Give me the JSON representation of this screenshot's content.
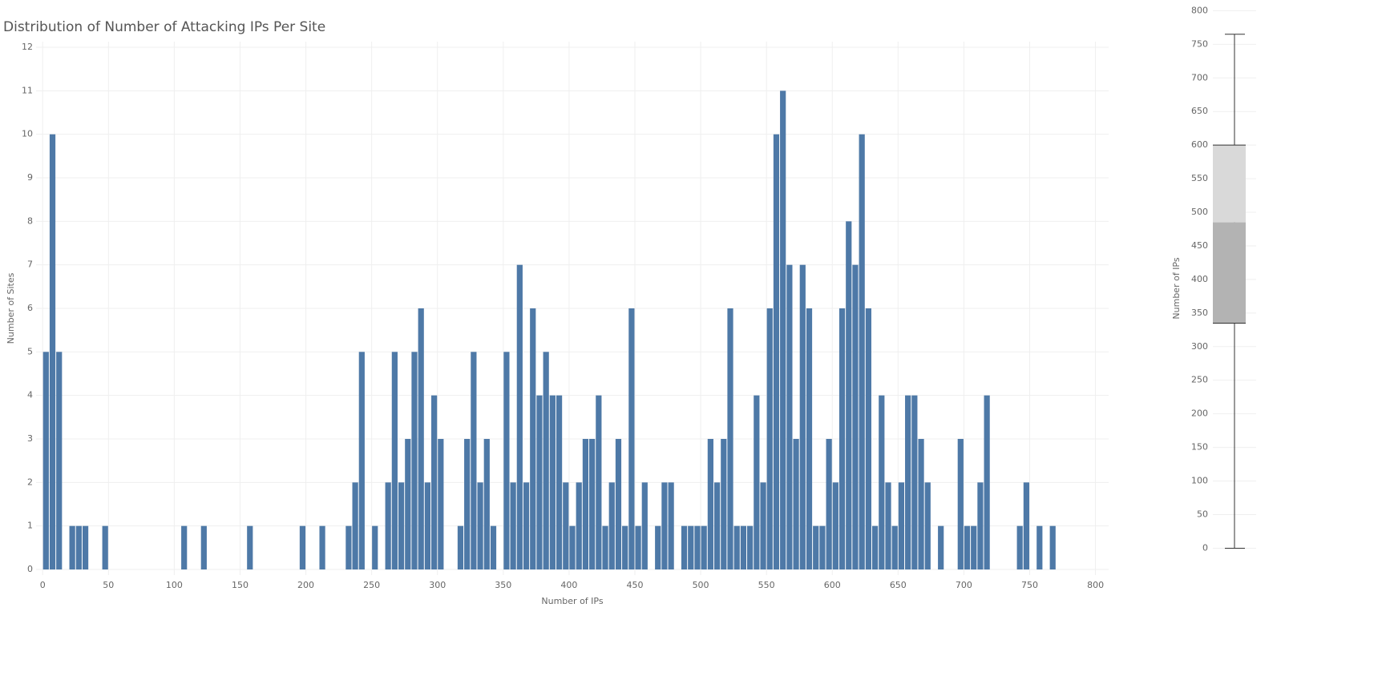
{
  "chart_data": [
    {
      "type": "histogram",
      "title": "Distribution of Number of Attacking IPs Per Site",
      "xlabel": "Number of IPs",
      "ylabel": "Number of Sites",
      "color": "#4e79a7",
      "grid": true,
      "bins": [
        0,
        5,
        10,
        15,
        20,
        25,
        30,
        35,
        40,
        45,
        50,
        55,
        60,
        65,
        70,
        75,
        80,
        85,
        90,
        95,
        100,
        105,
        110,
        115,
        120,
        125,
        130,
        135,
        140,
        145,
        150,
        155,
        160,
        165,
        170,
        175,
        180,
        185,
        190,
        195,
        200,
        205,
        210,
        215,
        220,
        225,
        230,
        235,
        240,
        245,
        250,
        255,
        260,
        265,
        270,
        275,
        280,
        285,
        290,
        295,
        300,
        305,
        310,
        315,
        320,
        325,
        330,
        335,
        340,
        345,
        350,
        355,
        360,
        365,
        370,
        375,
        380,
        385,
        390,
        395,
        400,
        405,
        410,
        415,
        420,
        425,
        430,
        435,
        440,
        445,
        450,
        455,
        460,
        465,
        470,
        475,
        480,
        485,
        490,
        495,
        500,
        505,
        510,
        515,
        520,
        525,
        530,
        535,
        540,
        545,
        550,
        555,
        560,
        565,
        570,
        575,
        580,
        585,
        590,
        595,
        600,
        605,
        610,
        615,
        620,
        625,
        630,
        635,
        640,
        645,
        650,
        655,
        660,
        665,
        670,
        675,
        680,
        685,
        690,
        695,
        700,
        705,
        710,
        715,
        720,
        725,
        730,
        735,
        740,
        745,
        750,
        755,
        760,
        765,
        770
      ],
      "values": [
        5,
        10,
        5,
        0,
        1,
        1,
        1,
        0,
        0,
        1,
        0,
        0,
        0,
        0,
        0,
        0,
        0,
        0,
        0,
        0,
        0,
        1,
        0,
        0,
        1,
        0,
        0,
        0,
        0,
        0,
        0,
        1,
        0,
        0,
        0,
        0,
        0,
        0,
        0,
        1,
        0,
        0,
        1,
        0,
        0,
        0,
        1,
        2,
        5,
        0,
        1,
        0,
        2,
        5,
        2,
        3,
        5,
        6,
        2,
        4,
        3,
        0,
        0,
        1,
        3,
        5,
        2,
        3,
        1,
        0,
        5,
        2,
        7,
        2,
        6,
        4,
        5,
        4,
        4,
        2,
        1,
        2,
        3,
        3,
        4,
        1,
        2,
        3,
        1,
        6,
        1,
        2,
        0,
        1,
        2,
        2,
        0,
        1,
        1,
        1,
        1,
        3,
        2,
        3,
        6,
        1,
        1,
        1,
        4,
        2,
        6,
        10,
        11,
        7,
        3,
        7,
        6,
        1,
        1,
        3,
        2,
        6,
        8,
        7,
        10,
        6,
        1,
        4,
        2,
        1,
        2,
        4,
        4,
        3,
        2,
        0,
        1,
        0,
        0,
        3,
        1,
        1,
        2,
        4,
        0,
        0,
        0,
        0,
        1,
        2,
        0,
        1,
        0,
        1
      ],
      "xlim": [
        -5,
        810
      ],
      "xticks": [
        0,
        50,
        100,
        150,
        200,
        250,
        300,
        350,
        400,
        450,
        500,
        550,
        600,
        650,
        700,
        750,
        800
      ],
      "ylim": [
        0,
        12
      ],
      "yticks": [
        0,
        1,
        2,
        3,
        4,
        5,
        6,
        7,
        8,
        9,
        10,
        11,
        12
      ]
    },
    {
      "type": "box",
      "ylabel": "Number of IPs",
      "whisker_low": 0,
      "q1": 335,
      "median": 485,
      "q3": 600,
      "whisker_high": 765,
      "upper_color": "#d9d9d9",
      "lower_color": "#b3b3b3",
      "grid": true,
      "ylim": [
        -40,
        810
      ],
      "yticks": [
        0,
        50,
        100,
        150,
        200,
        250,
        300,
        350,
        400,
        450,
        500,
        550,
        600,
        650,
        700,
        750,
        800
      ]
    }
  ]
}
